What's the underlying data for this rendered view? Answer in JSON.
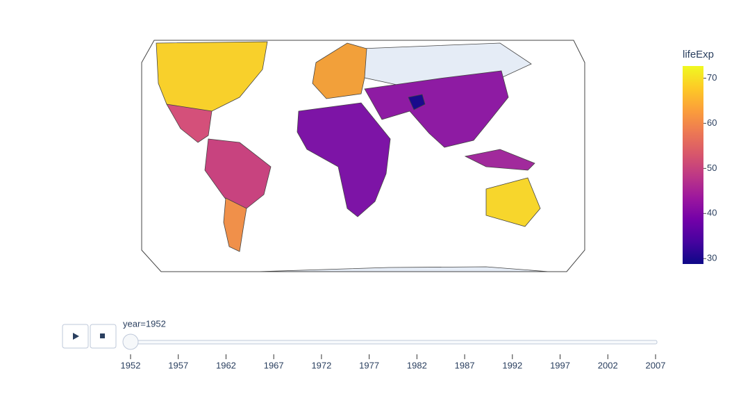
{
  "chart_data": {
    "type": "choropleth",
    "colorbar": {
      "title": "lifeExp",
      "range": [
        28.8,
        72.7
      ],
      "ticks": [
        30,
        40,
        50,
        60,
        70
      ],
      "colors": [
        "#0d0887",
        "#46039f",
        "#7201a8",
        "#9c179e",
        "#bd3786",
        "#d8576b",
        "#ed7953",
        "#fb9f3a",
        "#fdca26",
        "#f0f921"
      ]
    },
    "slider": {
      "current_label": "year=1952",
      "range": [
        1952,
        2007
      ],
      "steps": [
        1952,
        1957,
        1962,
        1967,
        1972,
        1977,
        1982,
        1987,
        1992,
        1997,
        2002,
        2007
      ],
      "value": 1952
    }
  }
}
